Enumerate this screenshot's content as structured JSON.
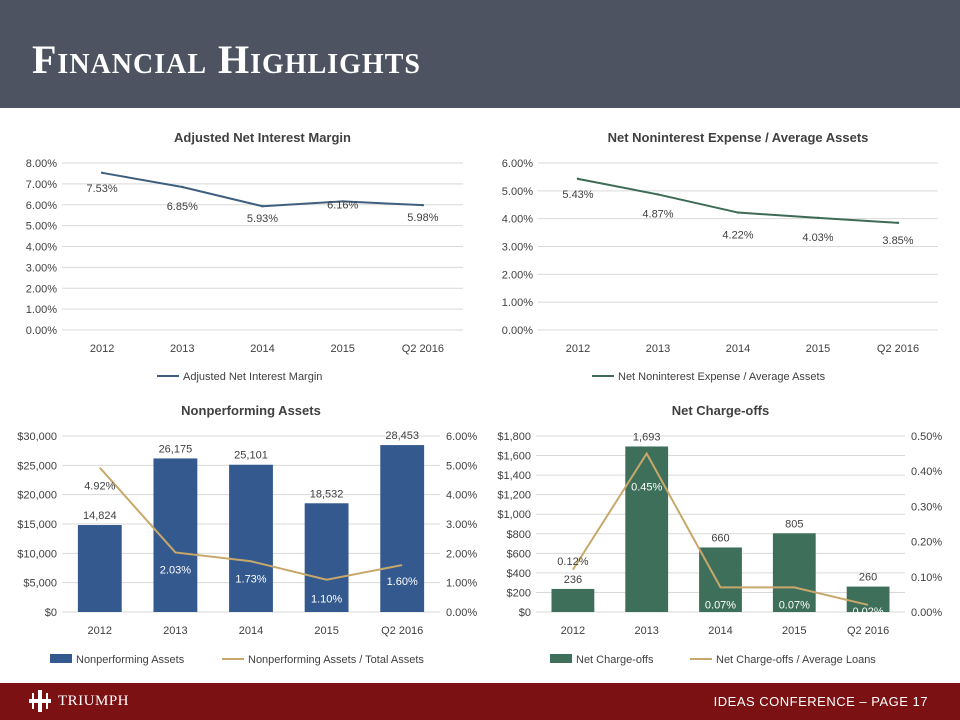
{
  "header": {
    "title": "Financial Highlights"
  },
  "footer": {
    "logo_text": "TRIUMPH",
    "page_text": "IDEAS CONFERENCE – PAGE 17"
  },
  "colors": {
    "header_bg": "#4d5360",
    "footer_bg": "#7b1113",
    "line_dark": "#3f5f7f",
    "line_green": "#3d6b55",
    "bar_blue": "#34598f",
    "bar_green": "#3e6f5b",
    "line_orange": "#c8a86a",
    "grid": "#d9d9d9"
  },
  "chart_data": [
    {
      "type": "line",
      "title": "Adjusted Net Interest Margin",
      "categories": [
        "2012",
        "2013",
        "2014",
        "2015",
        "Q2 2016"
      ],
      "series": [
        {
          "name": "Adjusted Net Interest Margin",
          "values": [
            7.53,
            6.85,
            5.93,
            6.16,
            5.98
          ],
          "labels": [
            "7.53%",
            "6.85%",
            "5.93%",
            "6.16%",
            "5.98%"
          ]
        }
      ],
      "yticks": [
        "0.00%",
        "1.00%",
        "2.00%",
        "3.00%",
        "4.00%",
        "5.00%",
        "6.00%",
        "7.00%",
        "8.00%"
      ],
      "ylim": [
        0,
        8
      ],
      "legend": "bottom"
    },
    {
      "type": "line",
      "title": "Net Noninterest Expense / Average Assets",
      "categories": [
        "2012",
        "2013",
        "2014",
        "2015",
        "Q2 2016"
      ],
      "series": [
        {
          "name": "Net Noninterest Expense / Average Assets",
          "values": [
            5.43,
            4.87,
            4.22,
            4.03,
            3.85
          ],
          "labels": [
            "5.43%",
            "4.87%",
            "4.22%",
            "4.03%",
            "3.85%"
          ]
        }
      ],
      "yticks": [
        "0.00%",
        "1.00%",
        "2.00%",
        "3.00%",
        "4.00%",
        "5.00%",
        "6.00%"
      ],
      "ylim": [
        0,
        6
      ],
      "legend": "bottom"
    },
    {
      "type": "bar",
      "title": "Nonperforming Assets",
      "categories": [
        "2012",
        "2013",
        "2014",
        "2015",
        "Q2 2016"
      ],
      "series": [
        {
          "name": "Nonperforming Assets",
          "kind": "bar",
          "values": [
            14824,
            26175,
            25101,
            18532,
            28453
          ],
          "labels": [
            "14,824",
            "26,175",
            "25,101",
            "18,532",
            "28,453"
          ]
        },
        {
          "name": "Nonperforming Assets / Total Assets",
          "kind": "line",
          "axis": "right",
          "values": [
            4.92,
            2.03,
            1.73,
            1.1,
            1.6
          ],
          "labels": [
            "4.92%",
            "2.03%",
            "1.73%",
            "1.10%",
            "1.60%"
          ]
        }
      ],
      "yticks_left": [
        "$0",
        "$5,000",
        "$10,000",
        "$15,000",
        "$20,000",
        "$25,000",
        "$30,000"
      ],
      "ylim_left": [
        0,
        30000
      ],
      "yticks_right": [
        "0.00%",
        "1.00%",
        "2.00%",
        "3.00%",
        "4.00%",
        "5.00%",
        "6.00%"
      ],
      "ylim_right": [
        0,
        6
      ],
      "legend": "bottom"
    },
    {
      "type": "bar",
      "title": "Net Charge-offs",
      "categories": [
        "2012",
        "2013",
        "2014",
        "2015",
        "Q2 2016"
      ],
      "series": [
        {
          "name": "Net Charge-offs",
          "kind": "bar",
          "values": [
            236,
            1693,
            660,
            805,
            260
          ],
          "labels": [
            "236",
            "1,693",
            "660",
            "805",
            "260"
          ]
        },
        {
          "name": "Net Charge-offs / Average Loans",
          "kind": "line",
          "axis": "right",
          "values": [
            0.12,
            0.45,
            0.07,
            0.07,
            0.02
          ],
          "labels": [
            "0.12%",
            "0.45%",
            "0.07%",
            "0.07%",
            "0.02%"
          ]
        }
      ],
      "yticks_left": [
        "$0",
        "$200",
        "$400",
        "$600",
        "$800",
        "$1,000",
        "$1,200",
        "$1,400",
        "$1,600",
        "$1,800"
      ],
      "ylim_left": [
        0,
        1800
      ],
      "yticks_right": [
        "0.00%",
        "0.10%",
        "0.20%",
        "0.30%",
        "0.40%",
        "0.50%"
      ],
      "ylim_right": [
        0,
        0.5
      ],
      "legend": "bottom"
    }
  ]
}
